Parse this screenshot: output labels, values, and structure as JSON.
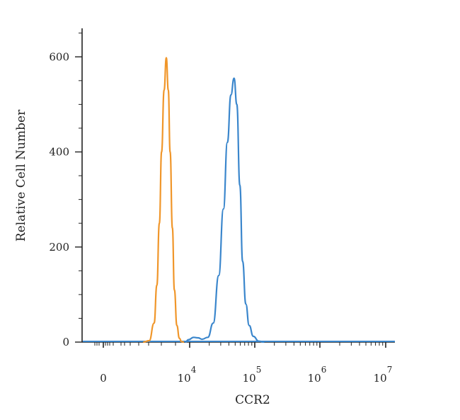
{
  "chart_data": {
    "type": "line",
    "title": "",
    "xlabel": "CCR2",
    "ylabel": "Relative Cell Number",
    "x_scale": "log (biexponential)",
    "xlim": [
      -400,
      10000000
    ],
    "ylim": [
      0,
      660
    ],
    "grid": false,
    "legend": "none",
    "y_ticks": [
      {
        "value": 0,
        "label": "0"
      },
      {
        "value": 200,
        "label": "200"
      },
      {
        "value": 400,
        "label": "400"
      },
      {
        "value": 600,
        "label": "600"
      }
    ],
    "x_ticks": [
      {
        "value": 0,
        "base": "0",
        "exp": ""
      },
      {
        "value": 10000,
        "base": "10",
        "exp": "4"
      },
      {
        "value": 100000,
        "base": "10",
        "exp": "5"
      },
      {
        "value": 1000000,
        "base": "10",
        "exp": "6"
      },
      {
        "value": 10000000,
        "base": "10",
        "exp": "7"
      }
    ],
    "series": [
      {
        "color": "#f0962a",
        "points": [
          [
            1000,
            0
          ],
          [
            1300,
            3
          ],
          [
            1600,
            40
          ],
          [
            1800,
            120
          ],
          [
            2000,
            250
          ],
          [
            2200,
            400
          ],
          [
            2450,
            530
          ],
          [
            2700,
            598
          ],
          [
            2950,
            530
          ],
          [
            3200,
            400
          ],
          [
            3550,
            240
          ],
          [
            3900,
            110
          ],
          [
            4400,
            35
          ],
          [
            5000,
            8
          ],
          [
            5600,
            1
          ],
          [
            6500,
            0
          ]
        ]
      },
      {
        "color": "#3a86cc",
        "points": [
          [
            7000,
            0
          ],
          [
            9000,
            5
          ],
          [
            11500,
            10
          ],
          [
            13500,
            9
          ],
          [
            15500,
            6
          ],
          [
            19000,
            10
          ],
          [
            23000,
            40
          ],
          [
            28000,
            140
          ],
          [
            33000,
            280
          ],
          [
            38000,
            420
          ],
          [
            43000,
            520
          ],
          [
            48000,
            555
          ],
          [
            53000,
            500
          ],
          [
            59000,
            330
          ],
          [
            65000,
            170
          ],
          [
            73000,
            80
          ],
          [
            82000,
            35
          ],
          [
            95000,
            12
          ],
          [
            115000,
            2
          ],
          [
            140000,
            0
          ]
        ]
      }
    ]
  }
}
